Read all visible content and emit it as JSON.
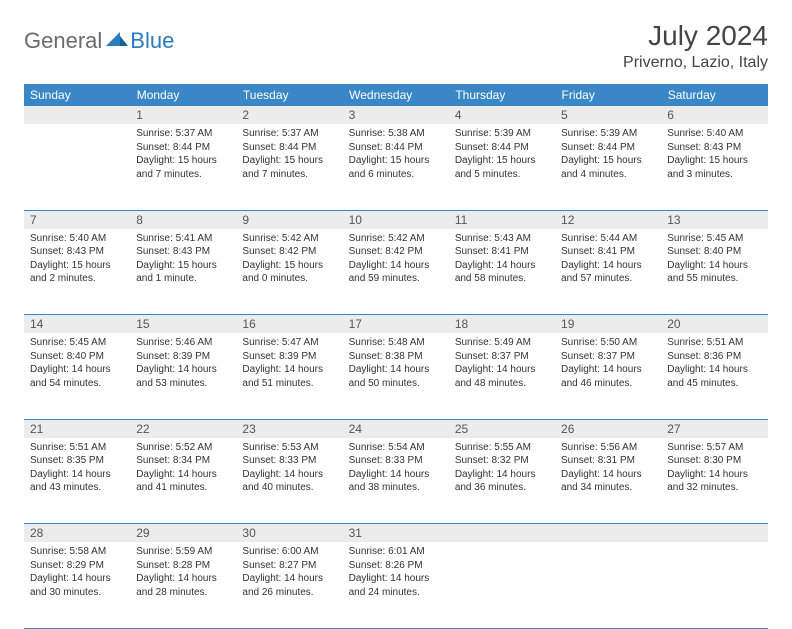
{
  "brand": {
    "part1": "General",
    "part2": "Blue"
  },
  "title": "July 2024",
  "location": "Priverno, Lazio, Italy",
  "colors": {
    "header_bg": "#3a87c8",
    "header_text": "#ffffff",
    "daynum_bg": "#ececec",
    "border": "#3a87c8",
    "text": "#333333",
    "brand_gray": "#6b6b6b",
    "brand_blue": "#2b7bbd"
  },
  "weekdays": [
    "Sunday",
    "Monday",
    "Tuesday",
    "Wednesday",
    "Thursday",
    "Friday",
    "Saturday"
  ],
  "weeks": [
    {
      "nums": [
        "",
        "1",
        "2",
        "3",
        "4",
        "5",
        "6"
      ],
      "cells": [
        null,
        {
          "sunrise": "Sunrise: 5:37 AM",
          "sunset": "Sunset: 8:44 PM",
          "d1": "Daylight: 15 hours",
          "d2": "and 7 minutes."
        },
        {
          "sunrise": "Sunrise: 5:37 AM",
          "sunset": "Sunset: 8:44 PM",
          "d1": "Daylight: 15 hours",
          "d2": "and 7 minutes."
        },
        {
          "sunrise": "Sunrise: 5:38 AM",
          "sunset": "Sunset: 8:44 PM",
          "d1": "Daylight: 15 hours",
          "d2": "and 6 minutes."
        },
        {
          "sunrise": "Sunrise: 5:39 AM",
          "sunset": "Sunset: 8:44 PM",
          "d1": "Daylight: 15 hours",
          "d2": "and 5 minutes."
        },
        {
          "sunrise": "Sunrise: 5:39 AM",
          "sunset": "Sunset: 8:44 PM",
          "d1": "Daylight: 15 hours",
          "d2": "and 4 minutes."
        },
        {
          "sunrise": "Sunrise: 5:40 AM",
          "sunset": "Sunset: 8:43 PM",
          "d1": "Daylight: 15 hours",
          "d2": "and 3 minutes."
        }
      ]
    },
    {
      "nums": [
        "7",
        "8",
        "9",
        "10",
        "11",
        "12",
        "13"
      ],
      "cells": [
        {
          "sunrise": "Sunrise: 5:40 AM",
          "sunset": "Sunset: 8:43 PM",
          "d1": "Daylight: 15 hours",
          "d2": "and 2 minutes."
        },
        {
          "sunrise": "Sunrise: 5:41 AM",
          "sunset": "Sunset: 8:43 PM",
          "d1": "Daylight: 15 hours",
          "d2": "and 1 minute."
        },
        {
          "sunrise": "Sunrise: 5:42 AM",
          "sunset": "Sunset: 8:42 PM",
          "d1": "Daylight: 15 hours",
          "d2": "and 0 minutes."
        },
        {
          "sunrise": "Sunrise: 5:42 AM",
          "sunset": "Sunset: 8:42 PM",
          "d1": "Daylight: 14 hours",
          "d2": "and 59 minutes."
        },
        {
          "sunrise": "Sunrise: 5:43 AM",
          "sunset": "Sunset: 8:41 PM",
          "d1": "Daylight: 14 hours",
          "d2": "and 58 minutes."
        },
        {
          "sunrise": "Sunrise: 5:44 AM",
          "sunset": "Sunset: 8:41 PM",
          "d1": "Daylight: 14 hours",
          "d2": "and 57 minutes."
        },
        {
          "sunrise": "Sunrise: 5:45 AM",
          "sunset": "Sunset: 8:40 PM",
          "d1": "Daylight: 14 hours",
          "d2": "and 55 minutes."
        }
      ]
    },
    {
      "nums": [
        "14",
        "15",
        "16",
        "17",
        "18",
        "19",
        "20"
      ],
      "cells": [
        {
          "sunrise": "Sunrise: 5:45 AM",
          "sunset": "Sunset: 8:40 PM",
          "d1": "Daylight: 14 hours",
          "d2": "and 54 minutes."
        },
        {
          "sunrise": "Sunrise: 5:46 AM",
          "sunset": "Sunset: 8:39 PM",
          "d1": "Daylight: 14 hours",
          "d2": "and 53 minutes."
        },
        {
          "sunrise": "Sunrise: 5:47 AM",
          "sunset": "Sunset: 8:39 PM",
          "d1": "Daylight: 14 hours",
          "d2": "and 51 minutes."
        },
        {
          "sunrise": "Sunrise: 5:48 AM",
          "sunset": "Sunset: 8:38 PM",
          "d1": "Daylight: 14 hours",
          "d2": "and 50 minutes."
        },
        {
          "sunrise": "Sunrise: 5:49 AM",
          "sunset": "Sunset: 8:37 PM",
          "d1": "Daylight: 14 hours",
          "d2": "and 48 minutes."
        },
        {
          "sunrise": "Sunrise: 5:50 AM",
          "sunset": "Sunset: 8:37 PM",
          "d1": "Daylight: 14 hours",
          "d2": "and 46 minutes."
        },
        {
          "sunrise": "Sunrise: 5:51 AM",
          "sunset": "Sunset: 8:36 PM",
          "d1": "Daylight: 14 hours",
          "d2": "and 45 minutes."
        }
      ]
    },
    {
      "nums": [
        "21",
        "22",
        "23",
        "24",
        "25",
        "26",
        "27"
      ],
      "cells": [
        {
          "sunrise": "Sunrise: 5:51 AM",
          "sunset": "Sunset: 8:35 PM",
          "d1": "Daylight: 14 hours",
          "d2": "and 43 minutes."
        },
        {
          "sunrise": "Sunrise: 5:52 AM",
          "sunset": "Sunset: 8:34 PM",
          "d1": "Daylight: 14 hours",
          "d2": "and 41 minutes."
        },
        {
          "sunrise": "Sunrise: 5:53 AM",
          "sunset": "Sunset: 8:33 PM",
          "d1": "Daylight: 14 hours",
          "d2": "and 40 minutes."
        },
        {
          "sunrise": "Sunrise: 5:54 AM",
          "sunset": "Sunset: 8:33 PM",
          "d1": "Daylight: 14 hours",
          "d2": "and 38 minutes."
        },
        {
          "sunrise": "Sunrise: 5:55 AM",
          "sunset": "Sunset: 8:32 PM",
          "d1": "Daylight: 14 hours",
          "d2": "and 36 minutes."
        },
        {
          "sunrise": "Sunrise: 5:56 AM",
          "sunset": "Sunset: 8:31 PM",
          "d1": "Daylight: 14 hours",
          "d2": "and 34 minutes."
        },
        {
          "sunrise": "Sunrise: 5:57 AM",
          "sunset": "Sunset: 8:30 PM",
          "d1": "Daylight: 14 hours",
          "d2": "and 32 minutes."
        }
      ]
    },
    {
      "nums": [
        "28",
        "29",
        "30",
        "31",
        "",
        "",
        ""
      ],
      "cells": [
        {
          "sunrise": "Sunrise: 5:58 AM",
          "sunset": "Sunset: 8:29 PM",
          "d1": "Daylight: 14 hours",
          "d2": "and 30 minutes."
        },
        {
          "sunrise": "Sunrise: 5:59 AM",
          "sunset": "Sunset: 8:28 PM",
          "d1": "Daylight: 14 hours",
          "d2": "and 28 minutes."
        },
        {
          "sunrise": "Sunrise: 6:00 AM",
          "sunset": "Sunset: 8:27 PM",
          "d1": "Daylight: 14 hours",
          "d2": "and 26 minutes."
        },
        {
          "sunrise": "Sunrise: 6:01 AM",
          "sunset": "Sunset: 8:26 PM",
          "d1": "Daylight: 14 hours",
          "d2": "and 24 minutes."
        },
        null,
        null,
        null
      ]
    }
  ]
}
